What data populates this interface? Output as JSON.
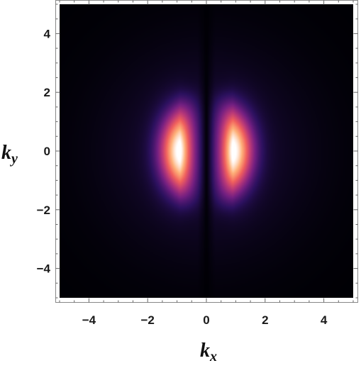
{
  "chart_data": {
    "type": "heatmap",
    "title": "",
    "xlabel": "k",
    "xlabel_sub": "x",
    "ylabel": "k",
    "ylabel_sub": "y",
    "xlim": [
      -5,
      5
    ],
    "ylim": [
      -5,
      5
    ],
    "xticks": [
      -4,
      -2,
      0,
      2,
      4
    ],
    "yticks": [
      -4,
      -2,
      0,
      2,
      4
    ],
    "xtick_labels": [
      "−4",
      "−2",
      "0",
      "2",
      "4"
    ],
    "ytick_labels": [
      "−4",
      "−2",
      "0",
      "2",
      "4"
    ],
    "colormap": [
      "#000004",
      "#2c115f",
      "#721f81",
      "#b73779",
      "#f1605d",
      "#feb078",
      "#ffffff"
    ],
    "background_color": "#000000",
    "grid": false,
    "legend": "none",
    "features": {
      "lobe_peaks": [
        [
          -0.9,
          0.0
        ],
        [
          0.9,
          0.0
        ]
      ],
      "lobe_extent_x": 1.4,
      "lobe_extent_y": 1.8,
      "nodal_line_x": 0.0
    }
  }
}
